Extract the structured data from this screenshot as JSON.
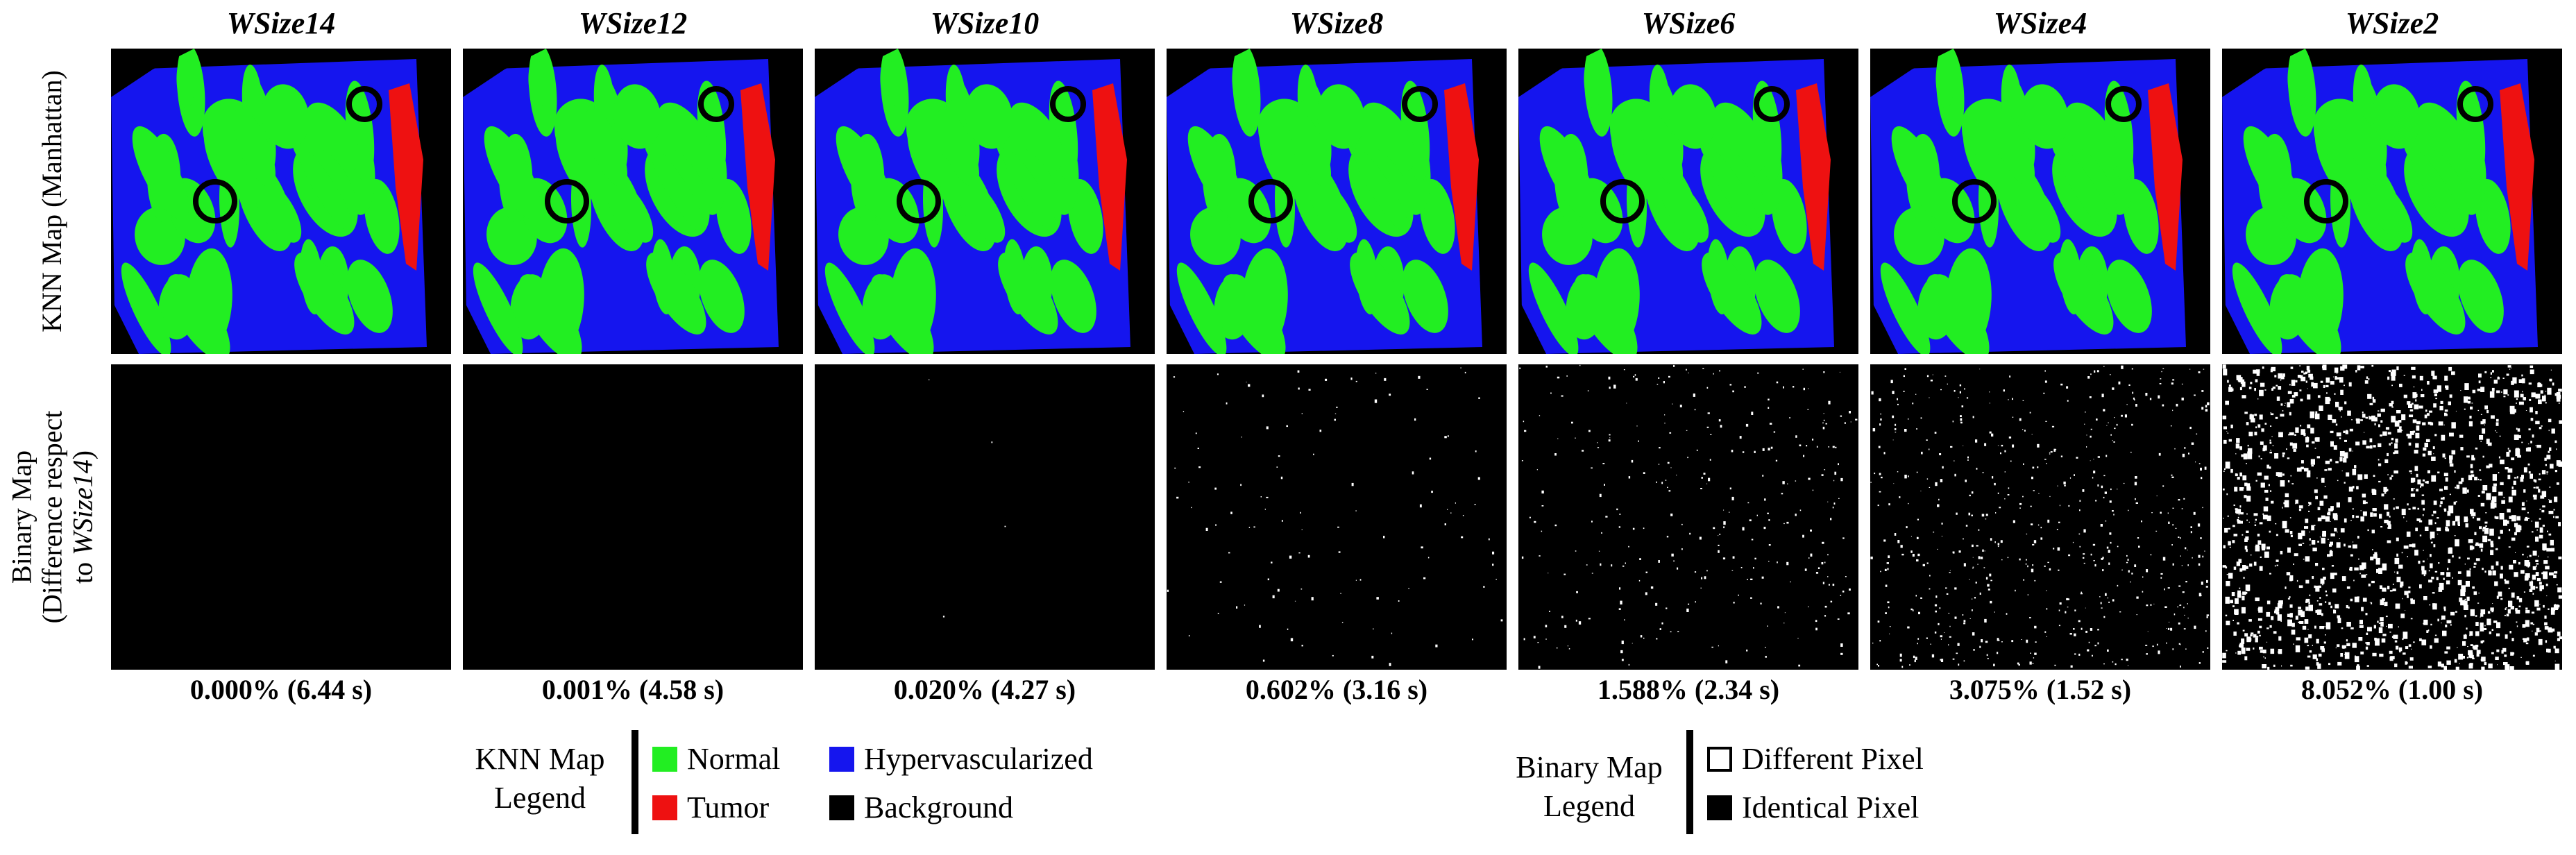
{
  "columns": [
    {
      "title": "WSize14",
      "stat": "0.000% (6.44 s)",
      "noise": 0
    },
    {
      "title": "WSize12",
      "stat": "0.001% (4.58 s)",
      "noise": 0.001
    },
    {
      "title": "WSize10",
      "stat": "0.020% (4.27 s)",
      "noise": 0.02
    },
    {
      "title": "WSize8",
      "stat": "0.602% (3.16 s)",
      "noise": 0.602
    },
    {
      "title": "WSize6",
      "stat": "1.588% (2.34 s)",
      "noise": 1.588
    },
    {
      "title": "WSize4",
      "stat": "3.075% (1.52 s)",
      "noise": 3.075
    },
    {
      "title": "WSize2",
      "stat": "8.052% (1.00 s)",
      "noise": 8.052
    }
  ],
  "rows": {
    "top_label": "KNN Map (Manhattan)",
    "bottom_label_line1": "Binary Map",
    "bottom_label_line2": "(Difference respect",
    "bottom_label_line3": "to",
    "bottom_label_line3_italic": "WSize14",
    "bottom_label_line3_end": ")"
  },
  "knn_legend": {
    "title_line1": "KNN Map",
    "title_line2": "Legend",
    "items": [
      {
        "label": "Normal",
        "color": "#22ee22"
      },
      {
        "label": "Hypervascularized",
        "color": "#1515ee"
      },
      {
        "label": "Tumor",
        "color": "#ee1111"
      },
      {
        "label": "Background",
        "color": "#000000"
      }
    ]
  },
  "binary_legend": {
    "title_line1": "Binary Map",
    "title_line2": "Legend",
    "items": [
      {
        "label": "Different Pixel",
        "color": "#ffffff"
      },
      {
        "label": "Identical Pixel",
        "color": "#000000"
      }
    ]
  },
  "colors": {
    "normal": "#22ee22",
    "hyper": "#1515ee",
    "tumor": "#ee1111",
    "background": "#000000"
  }
}
